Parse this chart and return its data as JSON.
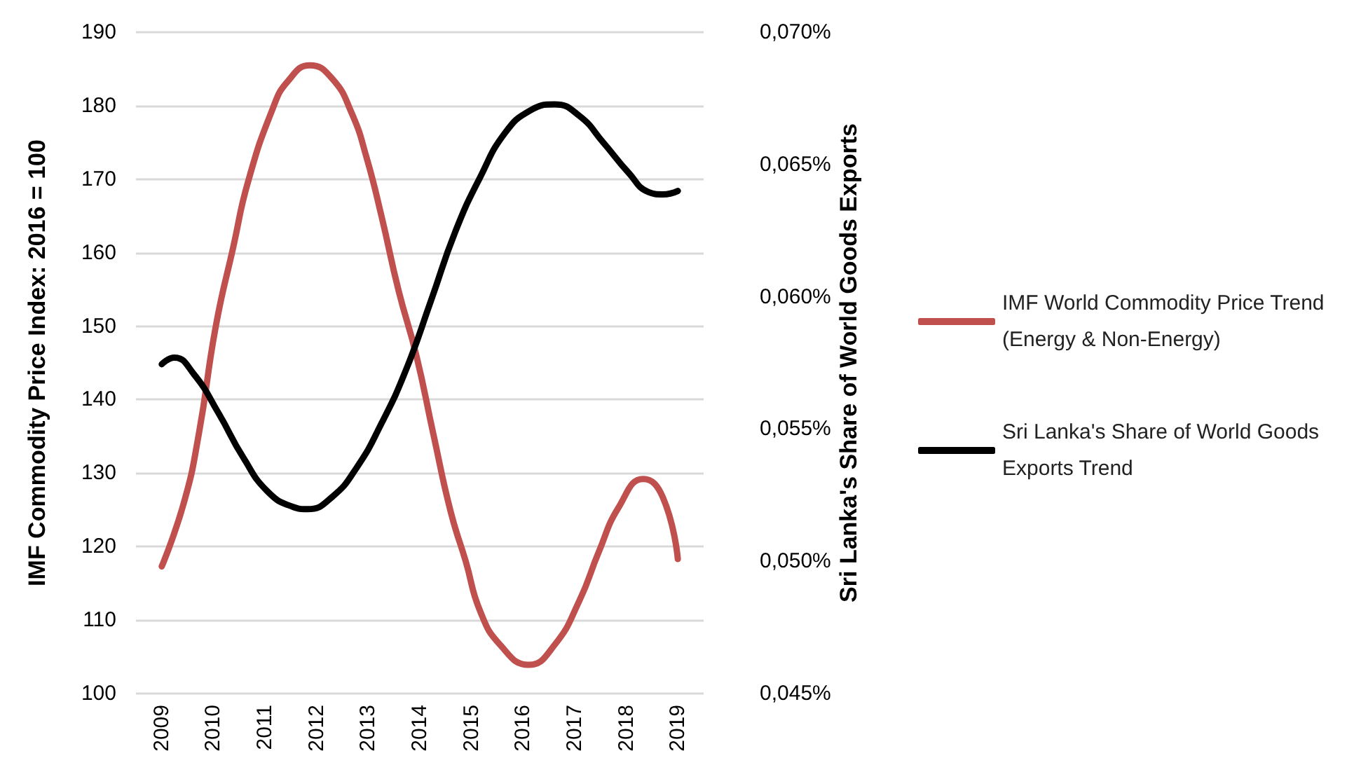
{
  "chart_data": {
    "type": "line",
    "ylabel": "IMF Commodity Price Index: 2016 = 100",
    "y2label": "Sri Lanka's Share of World Goods Exports",
    "xlim": [
      2008.5,
      2019.5
    ],
    "xticks": [
      2009,
      2010,
      2011,
      2012,
      2013,
      2014,
      2015,
      2016,
      2017,
      2018,
      2019
    ],
    "ylim": [
      100,
      190
    ],
    "yticks": [
      100,
      110,
      120,
      130,
      140,
      150,
      160,
      170,
      180,
      190
    ],
    "y2lim": [
      0.045,
      0.07
    ],
    "y2ticks": [
      {
        "value": 0.045,
        "label": "0,045%"
      },
      {
        "value": 0.05,
        "label": "0,050%"
      },
      {
        "value": 0.055,
        "label": "0,055%"
      },
      {
        "value": 0.06,
        "label": "0,060%"
      },
      {
        "value": 0.065,
        "label": "0,065%"
      },
      {
        "value": 0.07,
        "label": "0,070%"
      }
    ],
    "grid": "y",
    "legend": "right",
    "marker": "none",
    "line_style": "solid",
    "series": [
      {
        "name": "IMF World Commodity Price Trend (Energy & Non-Energy)",
        "color": "#c0504d",
        "x": [
          2009,
          2009.43,
          2009.72,
          2010.05,
          2010.39,
          2010.67,
          2011.15,
          2011.44,
          2011.87,
          2012.3,
          2012.68,
          2012.97,
          2013.26,
          2013.59,
          2013.93,
          2014.26,
          2014.6,
          2014.89,
          2015.17,
          2015.56,
          2016.11,
          2016.61,
          2017.09,
          2017.47,
          2017.85,
          2018.33,
          2018.71,
          2019
        ],
        "values": [
          117.3,
          126,
          135.4,
          150.1,
          160.9,
          169.6,
          179.6,
          183.3,
          185.5,
          183.7,
          179,
          172.9,
          164.9,
          154.8,
          146.1,
          135.4,
          124.7,
          118,
          111.2,
          106.6,
          103.9,
          106.6,
          112.6,
          119.3,
          125.3,
          129.2,
          126.7,
          118.3
        ]
      },
      {
        "name": "Sri Lanka's Share of World Goods Exports Trend",
        "color": "#000000",
        "axis": "y2",
        "x": [
          2009,
          2009.24,
          2009.62,
          2010.1,
          2010.58,
          2011.06,
          2011.54,
          2011.82,
          2012.3,
          2012.78,
          2013.26,
          2013.74,
          2014.22,
          2014.69,
          2015.17,
          2015.65,
          2016.13,
          2016.61,
          2017.09,
          2017.56,
          2018.04,
          2018.43,
          2018.71,
          2019
        ],
        "values": [
          0.05745,
          0.0577,
          0.05708,
          0.0556,
          0.05392,
          0.05262,
          0.05206,
          0.05197,
          0.05243,
          0.05355,
          0.05522,
          0.05727,
          0.05987,
          0.06247,
          0.06452,
          0.06619,
          0.06703,
          0.06727,
          0.06684,
          0.06582,
          0.0647,
          0.06396,
          0.06387,
          0.064
        ]
      }
    ]
  }
}
